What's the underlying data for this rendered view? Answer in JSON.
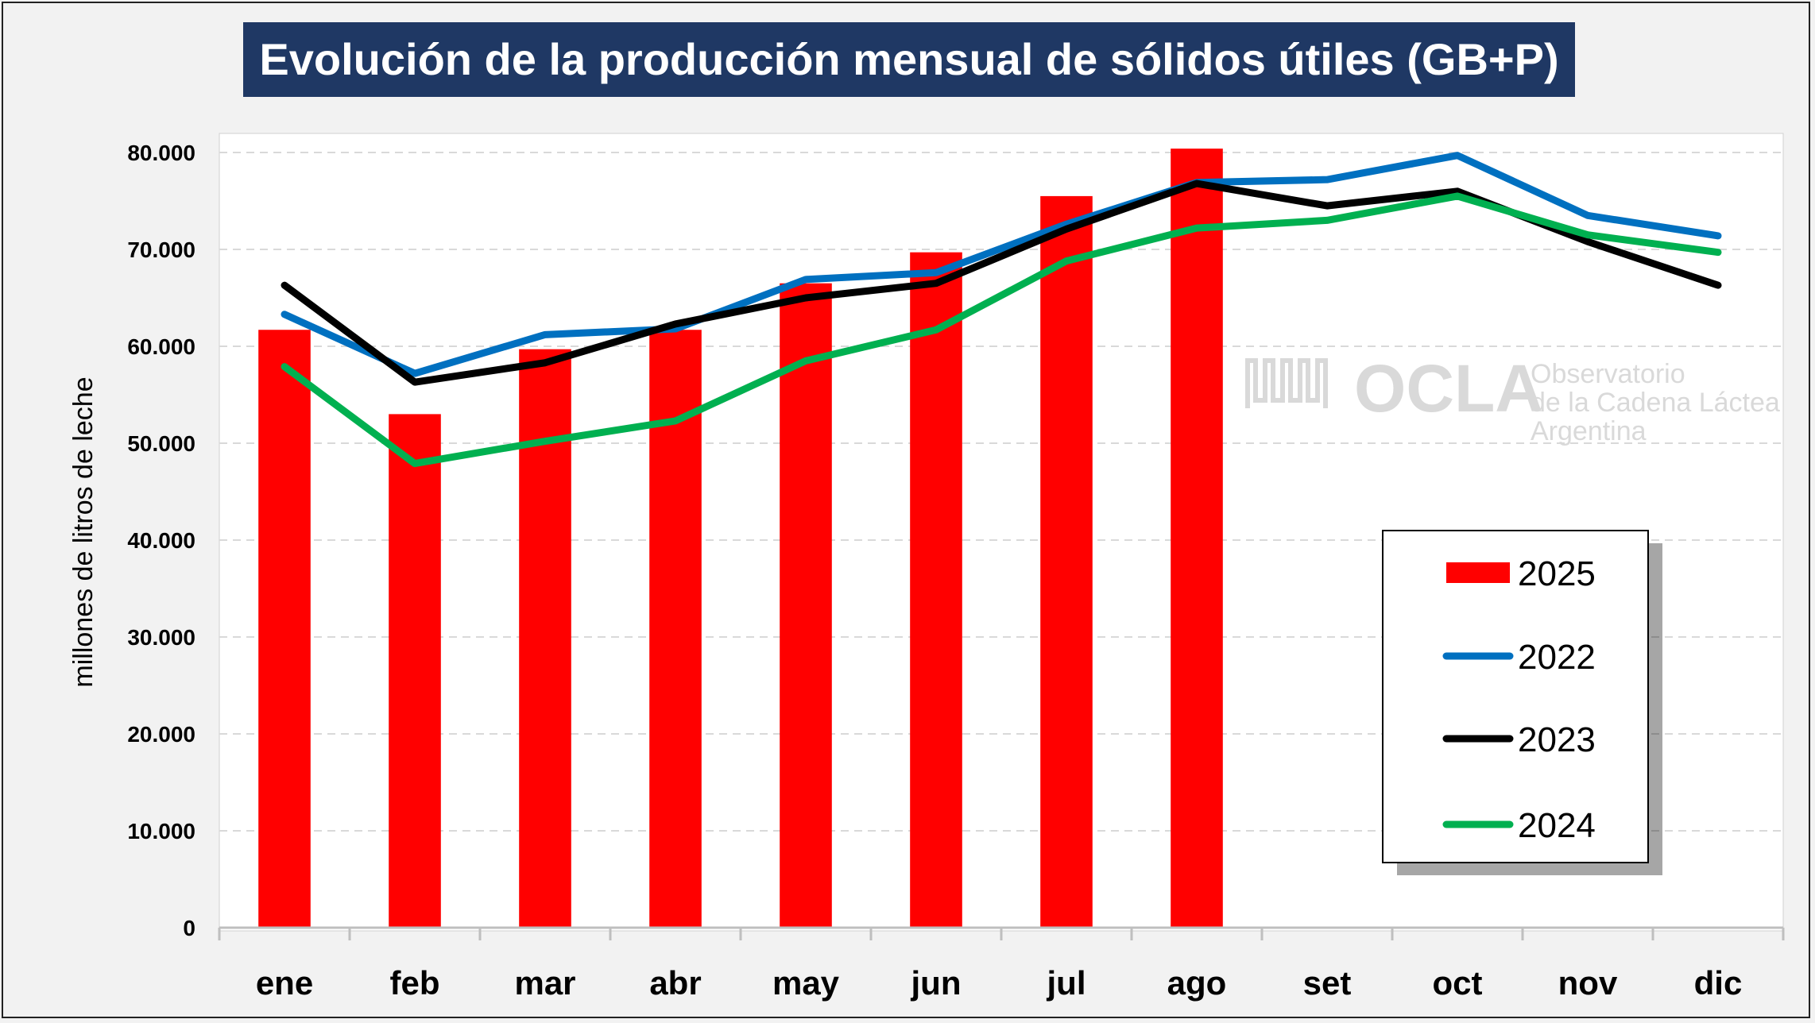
{
  "chart_data": {
    "type": "bar",
    "title": "Evolución de la producción mensual de sólidos útiles (GB+P)",
    "xlabel": "",
    "ylabel": "millones de litros de leche",
    "ylim": [
      0,
      80000
    ],
    "yticks": [
      0,
      10000,
      20000,
      30000,
      40000,
      50000,
      60000,
      70000,
      80000
    ],
    "ytick_labels": [
      "0",
      "10.000",
      "20.000",
      "30.000",
      "40.000",
      "50.000",
      "60.000",
      "70.000",
      "80.000"
    ],
    "grid": true,
    "legend_position": "bottom-right",
    "categories": [
      "ene",
      "feb",
      "mar",
      "abr",
      "may",
      "jun",
      "jul",
      "ago",
      "set",
      "oct",
      "nov",
      "dic"
    ],
    "bars": {
      "name": "2025",
      "color": "#ff0000",
      "values": [
        61700,
        53000,
        59700,
        61700,
        66500,
        69700,
        75500,
        80400,
        null,
        null,
        null,
        null
      ]
    },
    "series": [
      {
        "name": "2022",
        "color": "#0070c0",
        "values": [
          63300,
          57200,
          61200,
          61800,
          66900,
          67600,
          72600,
          76900,
          77200,
          79700,
          73500,
          71400
        ]
      },
      {
        "name": "2023",
        "color": "#000000",
        "values": [
          66300,
          56300,
          58300,
          62300,
          65000,
          66500,
          72100,
          76800,
          74500,
          76000,
          70800,
          66300
        ]
      },
      {
        "name": "2024",
        "color": "#00b050",
        "values": [
          57900,
          47900,
          50200,
          52300,
          58500,
          61700,
          68800,
          72200,
          73000,
          75500,
          71500,
          69700
        ]
      }
    ],
    "legend": [
      "2025",
      "2022",
      "2023",
      "2024"
    ]
  },
  "watermark": {
    "logo": "OCLA",
    "line1": "Observatorio",
    "line2": "de la Cadena Láctea",
    "line3": "Argentina"
  }
}
